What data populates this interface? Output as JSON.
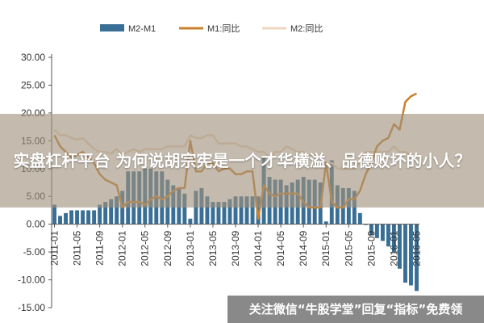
{
  "overlay": {
    "title": "实盘杠杆平台 为何说胡宗宪是一个才华横溢、品德败坏的小人？"
  },
  "watermark": {
    "text": "关注微信“牛股学堂”回复“指标”免费领"
  },
  "colors": {
    "bar": "#3a6f95",
    "m1": "#c9812e",
    "m2": "#f0d6bf",
    "axis": "#555555"
  },
  "chart_data": {
    "type": "bar",
    "title": "",
    "xlabel": "",
    "ylabel": "",
    "ylim": [
      -15,
      30
    ],
    "yticks": [
      "30.00",
      "25.00",
      "20.00",
      "15.00",
      "10.00",
      "5.00",
      "0.00",
      "-5.00",
      "-10.00",
      "-15.00"
    ],
    "grid": false,
    "legend_position": "top",
    "x": [
      "2011-01",
      "2011-02",
      "2011-03",
      "2011-04",
      "2011-05",
      "2011-06",
      "2011-07",
      "2011-08",
      "2011-09",
      "2011-10",
      "2011-11",
      "2011-12",
      "2012-01",
      "2012-02",
      "2012-03",
      "2012-04",
      "2012-05",
      "2012-06",
      "2012-07",
      "2012-08",
      "2012-09",
      "2012-10",
      "2012-11",
      "2012-12",
      "2013-01",
      "2013-02",
      "2013-03",
      "2013-04",
      "2013-05",
      "2013-06",
      "2013-07",
      "2013-08",
      "2013-09",
      "2013-10",
      "2013-11",
      "2013-12",
      "2014-01",
      "2014-02",
      "2014-03",
      "2014-04",
      "2014-05",
      "2014-06",
      "2014-07",
      "2014-08",
      "2014-09",
      "2014-10",
      "2014-11",
      "2014-12",
      "2015-01",
      "2015-02",
      "2015-03",
      "2015-04",
      "2015-05",
      "2015-06",
      "2015-07",
      "2015-08",
      "2015-09",
      "2015-10",
      "2015-11",
      "2015-12",
      "2016-01",
      "2016-02",
      "2016-03",
      "2016-04",
      "2016-05"
    ],
    "xtick_labels": [
      "2011-01",
      "2011-05",
      "2011-09",
      "2012-01",
      "2012-05",
      "2012-09",
      "2013-01",
      "2013-05",
      "2013-09",
      "2014-01",
      "2014-05",
      "2014-09",
      "2015-01",
      "2015-05",
      "2015-09",
      "2016-01",
      "2016-05"
    ],
    "series": [
      {
        "name": "M2-M1",
        "kind": "bar",
        "values": [
          3.5,
          1.5,
          2,
          2.5,
          2.5,
          2.5,
          2.5,
          2.5,
          3.5,
          4,
          4.5,
          5,
          6,
          9.5,
          9.5,
          9.5,
          10,
          10,
          9.5,
          9.5,
          8,
          7,
          6.5,
          5.5,
          1,
          6,
          6.5,
          5,
          4,
          4,
          4,
          4.5,
          5,
          5,
          5,
          5,
          5,
          12,
          8.5,
          8,
          8,
          7,
          7.5,
          8,
          8.5,
          8,
          8,
          7.5,
          0.5,
          11.5,
          7,
          6.5,
          6.5,
          6,
          2,
          0,
          -2,
          -2.5,
          -3,
          -4,
          -5,
          -8,
          -10.5,
          -11,
          -12
        ]
      },
      {
        "name": "M1:同比",
        "kind": "line",
        "values": [
          16,
          14,
          13,
          12,
          12.5,
          13,
          12,
          11,
          9,
          8,
          7.5,
          7,
          3,
          4,
          4,
          4,
          3.5,
          4.5,
          5,
          4.5,
          5,
          6,
          6.5,
          6.5,
          15,
          9.5,
          9.5,
          11,
          11,
          9.5,
          10,
          10,
          9,
          9,
          9.5,
          9.5,
          1,
          7,
          5.5,
          5,
          5.5,
          5.5,
          5.5,
          5.5,
          4,
          3,
          3,
          3,
          11,
          4,
          3,
          3,
          4.5,
          4.5,
          6,
          9,
          11,
          14,
          15,
          15.5,
          18,
          17,
          22,
          23,
          23.5
        ]
      },
      {
        "name": "M2:同比",
        "kind": "line",
        "values": [
          17,
          16,
          16,
          15.5,
          15.2,
          15.5,
          14.5,
          13.5,
          13,
          13,
          12.7,
          13.5,
          12.5,
          13,
          13.5,
          13,
          13.5,
          13.5,
          13.5,
          13.5,
          14,
          14,
          14,
          14,
          16,
          15.5,
          15.5,
          16,
          16,
          14.5,
          14.5,
          14.5,
          14.5,
          14,
          14,
          13.5,
          13,
          13,
          12,
          13,
          13,
          14,
          13.5,
          13,
          13,
          12.5,
          12.5,
          12,
          11,
          11,
          10,
          10,
          10,
          10,
          11,
          13,
          13,
          13,
          13,
          13,
          14,
          13,
          13,
          12.5,
          11.5
        ]
      }
    ]
  }
}
